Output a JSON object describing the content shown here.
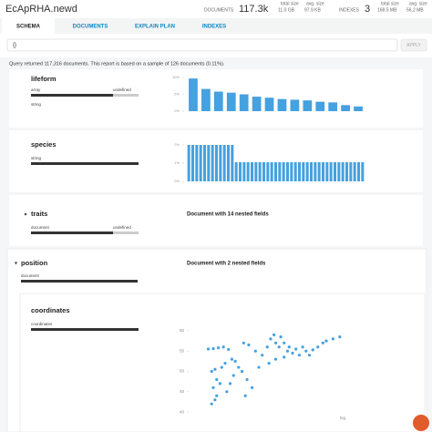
{
  "header": {
    "title": "EcApRHA.newd",
    "documents": {
      "label": "DOCUMENTS",
      "value": "117.3k",
      "total_size_label": "total size",
      "total_size": "11.0 GB",
      "avg_size_label": "avg. size",
      "avg_size": "97.9 KB"
    },
    "indexes": {
      "label": "INDEXES",
      "value": "3",
      "total_size_label": "total size",
      "total_size": "168.5 MB",
      "avg_size_label": "avg. size",
      "avg_size": "56.2 MB"
    }
  },
  "tabs": [
    "SCHEMA",
    "DOCUMENTS",
    "EXPLAIN PLAN",
    "INDEXES"
  ],
  "query": {
    "text": "{}",
    "button": "APPLY"
  },
  "message": "Query returned 117,316 documents. This report is based on a sample of 126 documents (0.11%).",
  "fields": [
    {
      "name": "lifeform",
      "types": [
        "array",
        "undefined",
        "string"
      ],
      "chart": {
        "type": "bar",
        "ylim": [
          0,
          10
        ],
        "yticks": [
          {
            "value": 10,
            "label": "10%"
          },
          {
            "value": 5,
            "label": "5%"
          },
          {
            "value": 0,
            "label": "0%"
          }
        ],
        "values": [
          9.7,
          6.6,
          5.8,
          5.5,
          5.0,
          4.3,
          4.0,
          3.6,
          3.4,
          3.2,
          2.8,
          2.6,
          1.8,
          1.4
        ],
        "color": "#45a1e0"
      }
    },
    {
      "name": "species",
      "types": [
        "string"
      ],
      "chart": {
        "type": "bar",
        "ylim": [
          0,
          2
        ],
        "yticks": [
          {
            "value": 2,
            "label": "2%"
          },
          {
            "value": 1,
            "label": "1%"
          },
          {
            "value": 0,
            "label": "0%"
          }
        ],
        "values": [
          2,
          2,
          2,
          2,
          2,
          2,
          2,
          2,
          2,
          2,
          2,
          2,
          1.05,
          1.05,
          1.05,
          1.05,
          1.05,
          1.05,
          1.05,
          1.05,
          1.05,
          1.05,
          1.05,
          1.05,
          1.05,
          1.05,
          1.05,
          1.05,
          1.05,
          1.05,
          1.05,
          1.05,
          1.05,
          1.05,
          1.05,
          1.05,
          1.05,
          1.05,
          1.05,
          1.05,
          1.05,
          1.05,
          1.05,
          1.05,
          1.05
        ],
        "color": "#45a1e0"
      }
    },
    {
      "name": "traits",
      "types": [
        "document",
        "undefined"
      ],
      "note": "Document with 14 nested fields"
    },
    {
      "name": "position",
      "types": [
        "document"
      ],
      "note": "Document with 2 nested fields"
    },
    {
      "name": "coordinates",
      "types": [
        "coordinates"
      ],
      "chart": {
        "type": "scatter",
        "x_label": "lng",
        "xlim": [
          0,
          100
        ],
        "ylim": [
          38,
          62
        ],
        "yticks": [
          60,
          55,
          50,
          45,
          40
        ],
        "color": "#45a1e0",
        "x": [
          10,
          13,
          16,
          19,
          22,
          12,
          14,
          18,
          20,
          24,
          26,
          28,
          15,
          17,
          13,
          15,
          14,
          12,
          21,
          23,
          25,
          30,
          33,
          36,
          32,
          40,
          31,
          34,
          38,
          42,
          45,
          47,
          49,
          50,
          52,
          53,
          55,
          57,
          58,
          60,
          62,
          64,
          66,
          68,
          70,
          72,
          75,
          78,
          80,
          84,
          88,
          50,
          55,
          46
        ],
        "y": [
          55.5,
          55.6,
          55.8,
          56,
          55.4,
          50,
          50.5,
          51,
          52,
          53,
          52.5,
          51,
          48,
          47,
          46,
          44,
          43,
          42,
          45,
          47,
          49,
          50,
          48,
          46,
          44,
          51,
          57,
          56.5,
          55,
          54,
          56,
          58,
          59,
          57,
          56,
          58.5,
          57,
          55,
          56,
          54.5,
          55.5,
          54,
          56,
          55,
          54,
          55.3,
          56,
          57,
          57.5,
          58,
          58.5,
          53,
          53.5,
          52
        ]
      }
    }
  ]
}
